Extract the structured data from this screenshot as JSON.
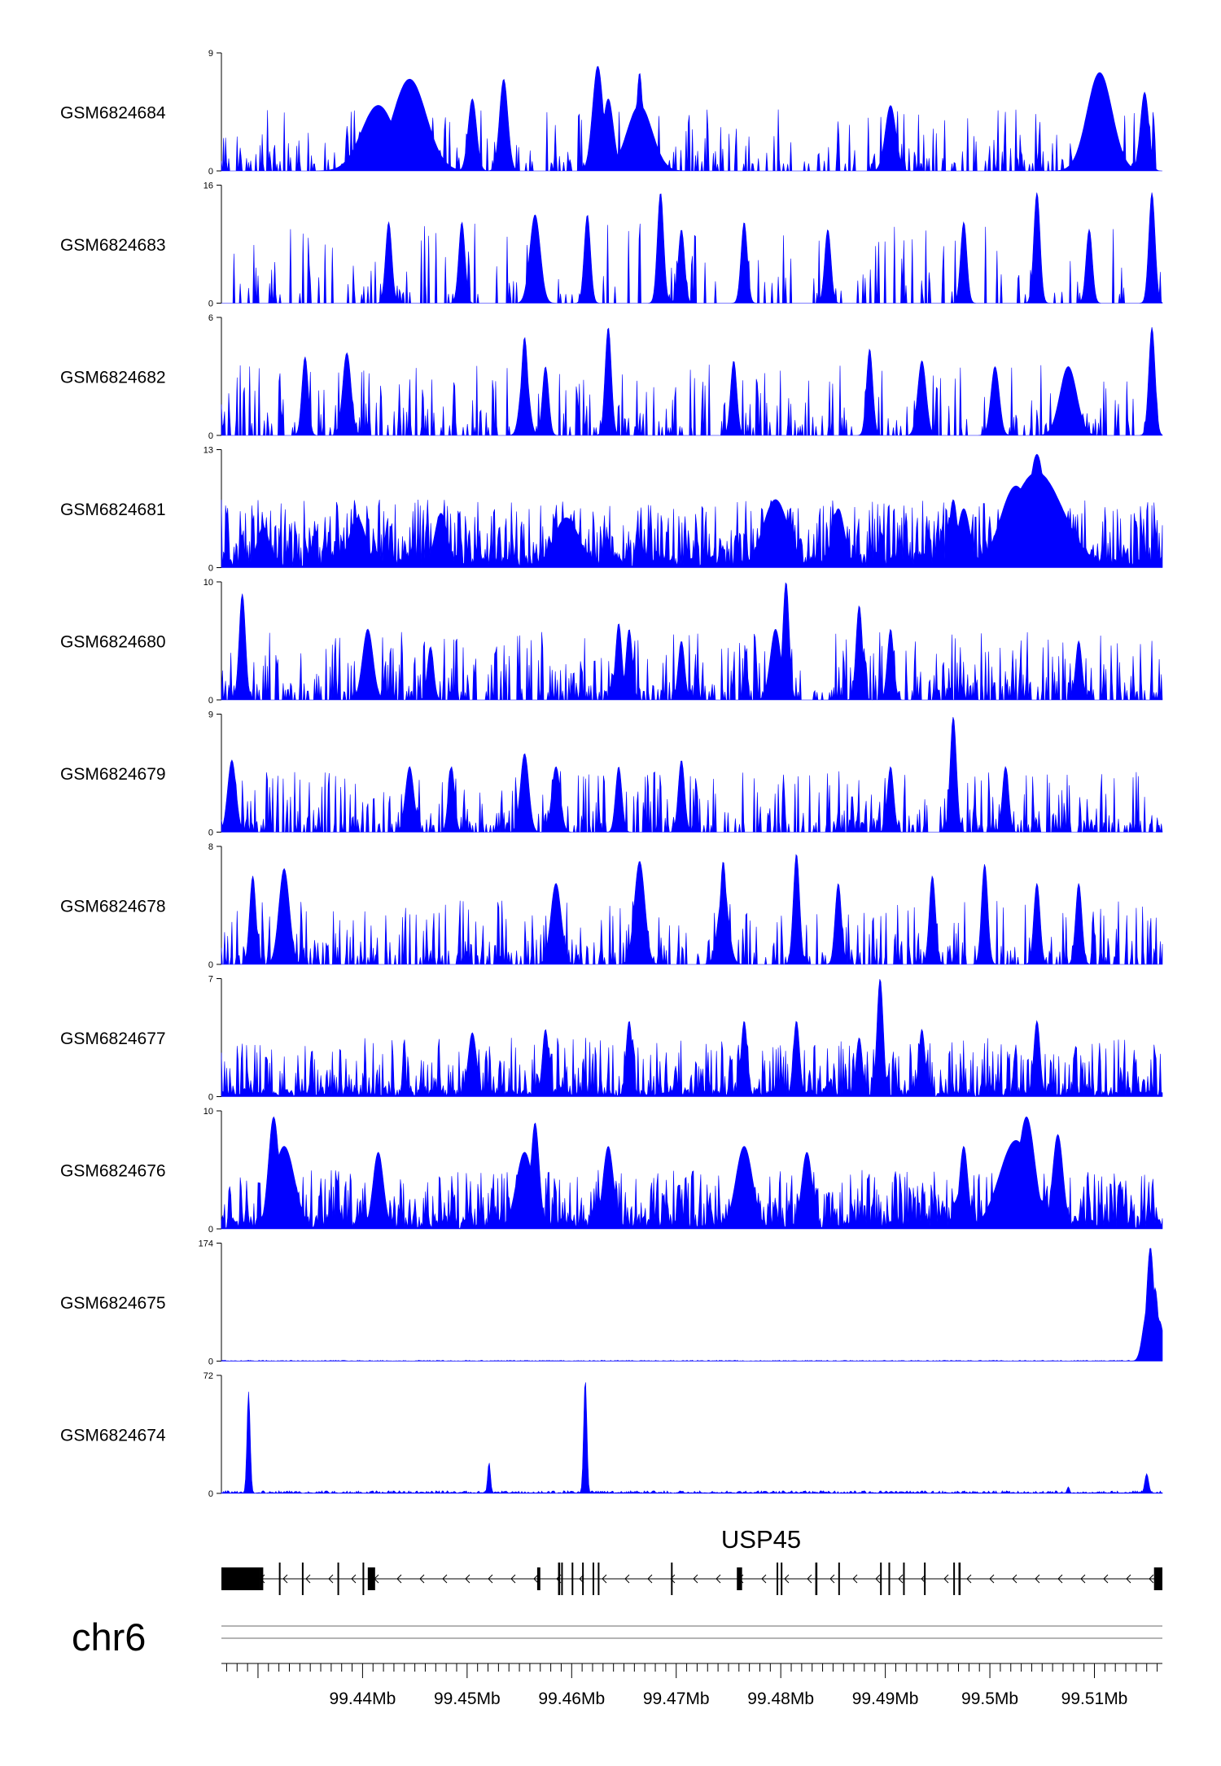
{
  "chart_data": {
    "type": "area",
    "chromosome": "chr6",
    "genome_range_mb": [
      99.4265,
      99.5165
    ],
    "x_ticks_mb": [
      99.44,
      99.45,
      99.46,
      99.47,
      99.48,
      99.49,
      99.5,
      99.51
    ],
    "x_tick_labels": [
      "99.44Mb",
      "99.45Mb",
      "99.46Mb",
      "99.47Mb",
      "99.48Mb",
      "99.49Mb",
      "99.5Mb",
      "99.51Mb"
    ],
    "series_color": "#0000ff",
    "tracks": [
      {
        "name": "GSM6824684",
        "ylim": [
          0,
          9
        ],
        "ymax_label": "9",
        "ymin_label": "0",
        "style": "sparse",
        "baseline": 1.3,
        "density": 0.33,
        "seed": 11,
        "peaks": [
          [
            99.4415,
            5.0,
            0.0016
          ],
          [
            99.4445,
            7.0,
            0.0016
          ],
          [
            99.4445,
            6.5,
            0.0006
          ],
          [
            99.4625,
            8.0,
            0.0005
          ],
          [
            99.4665,
            7.5,
            0.0003
          ],
          [
            99.4665,
            5.0,
            0.0012
          ],
          [
            99.4505,
            5.5,
            0.0004
          ],
          [
            99.4535,
            7.0,
            0.0004
          ],
          [
            99.4635,
            5.5,
            0.0005
          ],
          [
            99.4905,
            5.0,
            0.0005
          ],
          [
            99.5105,
            7.5,
            0.0012
          ],
          [
            99.5148,
            6.0,
            0.0004
          ]
        ]
      },
      {
        "name": "GSM6824683",
        "ylim": [
          0,
          16
        ],
        "ymax_label": "16",
        "ymin_label": "0",
        "style": "sparse",
        "baseline": 3.0,
        "density": 0.14,
        "seed": 23,
        "peaks": [
          [
            99.4685,
            15.0,
            0.0003
          ],
          [
            99.5155,
            15.0,
            0.0003
          ],
          [
            99.5045,
            15.0,
            0.0003
          ],
          [
            99.4565,
            12.0,
            0.0005
          ],
          [
            99.4615,
            12.0,
            0.0003
          ],
          [
            99.4425,
            11.0,
            0.0003
          ],
          [
            99.4495,
            11.0,
            0.0003
          ],
          [
            99.4765,
            11.0,
            0.0003
          ],
          [
            99.4975,
            11.0,
            0.0003
          ],
          [
            99.4845,
            10.0,
            0.0003
          ],
          [
            99.4705,
            10.0,
            0.0003
          ],
          [
            99.5095,
            10.0,
            0.0003
          ]
        ]
      },
      {
        "name": "GSM6824682",
        "ylim": [
          0,
          6
        ],
        "ymax_label": "6",
        "ymin_label": "0",
        "style": "sparse",
        "baseline": 1.0,
        "density": 0.3,
        "seed": 37,
        "peaks": [
          [
            99.4635,
            5.5,
            0.0003
          ],
          [
            99.5155,
            5.5,
            0.0003
          ],
          [
            99.4385,
            4.2,
            0.0004
          ],
          [
            99.4555,
            3.8,
            0.0004
          ],
          [
            99.4755,
            3.8,
            0.0003
          ],
          [
            99.4885,
            4.4,
            0.0003
          ],
          [
            99.4935,
            3.8,
            0.0004
          ],
          [
            99.4345,
            4.0,
            0.0003
          ],
          [
            99.4575,
            3.5,
            0.0003
          ],
          [
            99.5075,
            3.5,
            0.0008
          ],
          [
            99.5005,
            3.5,
            0.0004
          ],
          [
            99.4555,
            5.0,
            0.0003
          ]
        ]
      },
      {
        "name": "GSM6824681",
        "ylim": [
          0,
          13
        ],
        "ymax_label": "13",
        "ymin_label": "0",
        "style": "dense",
        "baseline": 3.0,
        "density": 0.85,
        "seed": 41,
        "peaks": [
          [
            99.5045,
            10.5,
            0.0025
          ],
          [
            99.5045,
            12.5,
            0.0008
          ],
          [
            99.5025,
            9.0,
            0.0015
          ],
          [
            99.4975,
            6.5,
            0.0006
          ],
          [
            99.4965,
            7.5,
            0.0004
          ],
          [
            99.4795,
            7.5,
            0.0012
          ],
          [
            99.4855,
            6.5,
            0.0006
          ],
          [
            99.4475,
            6.0,
            0.0006
          ],
          [
            99.4395,
            5.5,
            0.0008
          ],
          [
            99.4305,
            4.5,
            0.0006
          ],
          [
            99.4595,
            5.5,
            0.0012
          ]
        ]
      },
      {
        "name": "GSM6824680",
        "ylim": [
          0,
          10
        ],
        "ymax_label": "10",
        "ymin_label": "0",
        "style": "sparse",
        "baseline": 1.6,
        "density": 0.45,
        "seed": 53,
        "peaks": [
          [
            99.4285,
            9.0,
            0.0003
          ],
          [
            99.4805,
            10.0,
            0.0003
          ],
          [
            99.4795,
            6.0,
            0.0005
          ],
          [
            99.4875,
            8.0,
            0.0003
          ],
          [
            99.4645,
            6.5,
            0.0003
          ],
          [
            99.4405,
            6.0,
            0.0005
          ],
          [
            99.4655,
            6.0,
            0.0003
          ],
          [
            99.4905,
            6.0,
            0.0003
          ],
          [
            99.4465,
            4.5,
            0.0003
          ],
          [
            99.5085,
            5.0,
            0.0003
          ],
          [
            99.4705,
            5.0,
            0.0003
          ]
        ]
      },
      {
        "name": "GSM6824679",
        "ylim": [
          0,
          9
        ],
        "ymax_label": "9",
        "ymin_label": "0",
        "style": "sparse",
        "baseline": 1.3,
        "density": 0.42,
        "seed": 67,
        "peaks": [
          [
            99.4965,
            8.8,
            0.0003
          ],
          [
            99.4555,
            6.0,
            0.0004
          ],
          [
            99.4705,
            5.5,
            0.0003
          ],
          [
            99.4445,
            5.0,
            0.0004
          ],
          [
            99.4485,
            5.0,
            0.0003
          ],
          [
            99.4275,
            5.5,
            0.0004
          ],
          [
            99.4905,
            5.0,
            0.0003
          ],
          [
            99.5015,
            5.0,
            0.0003
          ],
          [
            99.4645,
            5.0,
            0.0003
          ],
          [
            99.4585,
            5.0,
            0.0004
          ]
        ]
      },
      {
        "name": "GSM6824678",
        "ylim": [
          0,
          8
        ],
        "ymax_label": "8",
        "ymin_label": "0",
        "style": "sparse",
        "baseline": 1.2,
        "density": 0.4,
        "seed": 79,
        "peaks": [
          [
            99.4815,
            7.5,
            0.0003
          ],
          [
            99.4745,
            7.0,
            0.0003
          ],
          [
            99.4665,
            7.0,
            0.0005
          ],
          [
            99.4745,
            5.0,
            0.0005
          ],
          [
            99.4995,
            6.8,
            0.0003
          ],
          [
            99.4945,
            6.0,
            0.0003
          ],
          [
            99.4325,
            6.5,
            0.0005
          ],
          [
            99.4295,
            6.0,
            0.0003
          ],
          [
            99.4585,
            5.5,
            0.0005
          ],
          [
            99.5085,
            5.5,
            0.0003
          ],
          [
            99.5045,
            5.5,
            0.0003
          ],
          [
            99.4855,
            5.5,
            0.0003
          ]
        ]
      },
      {
        "name": "GSM6824677",
        "ylim": [
          0,
          7
        ],
        "ymax_label": "7",
        "ymin_label": "0",
        "style": "dense",
        "baseline": 1.4,
        "density": 0.55,
        "seed": 83,
        "peaks": [
          [
            99.4895,
            7.0,
            0.0003
          ],
          [
            99.4765,
            4.5,
            0.0003
          ],
          [
            99.4815,
            4.5,
            0.0003
          ],
          [
            99.4575,
            4.0,
            0.0003
          ],
          [
            99.5045,
            4.5,
            0.0003
          ],
          [
            99.4655,
            4.5,
            0.0003
          ],
          [
            99.4935,
            4.0,
            0.0003
          ],
          [
            99.4505,
            3.8,
            0.0004
          ],
          [
            99.4875,
            3.5,
            0.0003
          ]
        ]
      },
      {
        "name": "GSM6824676",
        "ylim": [
          0,
          10
        ],
        "ymax_label": "10",
        "ymin_label": "0",
        "style": "dense",
        "baseline": 2.0,
        "density": 0.8,
        "seed": 97,
        "peaks": [
          [
            99.4315,
            9.5,
            0.0005
          ],
          [
            99.4325,
            7.0,
            0.001
          ],
          [
            99.4565,
            9.0,
            0.0004
          ],
          [
            99.4555,
            6.5,
            0.0008
          ],
          [
            99.5035,
            9.5,
            0.0008
          ],
          [
            99.5025,
            7.5,
            0.0016
          ],
          [
            99.5065,
            8.0,
            0.0005
          ],
          [
            99.4635,
            7.0,
            0.0005
          ],
          [
            99.4765,
            7.0,
            0.0008
          ],
          [
            99.4975,
            7.0,
            0.0004
          ],
          [
            99.4415,
            6.5,
            0.0005
          ],
          [
            99.4825,
            6.5,
            0.0005
          ]
        ]
      },
      {
        "name": "GSM6824675",
        "ylim": [
          0,
          174
        ],
        "ymax_label": "174",
        "ymin_label": "0",
        "style": "flat",
        "baseline": 1.2,
        "density": 0.6,
        "seed": 101,
        "peaks": [
          [
            99.51535,
            168.0,
            0.00035
          ],
          [
            99.5158,
            108.0,
            0.0003
          ],
          [
            99.515,
            70.0,
            0.0004
          ],
          [
            99.5162,
            60.0,
            0.0004
          ]
        ]
      },
      {
        "name": "GSM6824674",
        "ylim": [
          0,
          72
        ],
        "ymax_label": "72",
        "ymin_label": "0",
        "style": "flat",
        "baseline": 1.6,
        "density": 0.6,
        "seed": 113,
        "peaks": [
          [
            99.4291,
            62.0,
            0.00015
          ],
          [
            99.4521,
            19.0,
            0.00013
          ],
          [
            99.4613,
            70.0,
            0.00015
          ],
          [
            99.515,
            12.0,
            0.00018
          ],
          [
            99.5075,
            4.0,
            0.00012
          ]
        ]
      }
    ],
    "gene": {
      "name": "USP45",
      "strand": "-",
      "start_mb": 99.4265,
      "end_mb": 99.5165,
      "exons_mb": [
        [
          99.4265,
          99.4302
        ],
        [
          99.4302,
          99.4305
        ],
        [
          99.432,
          99.4321
        ],
        [
          99.4342,
          99.4343
        ],
        [
          99.4376,
          99.4377
        ],
        [
          99.44,
          99.4401
        ],
        [
          99.4405,
          99.4412
        ],
        [
          99.4567,
          99.457
        ],
        [
          99.4587,
          99.4589
        ],
        [
          99.459,
          99.4591
        ],
        [
          99.46,
          99.4601
        ],
        [
          99.461,
          99.4611
        ],
        [
          99.462,
          99.4621
        ],
        [
          99.4625,
          99.4626
        ],
        [
          99.4695,
          99.4696
        ],
        [
          99.4758,
          99.4763
        ],
        [
          99.4796,
          99.4797
        ],
        [
          99.48,
          99.4801
        ],
        [
          99.4833,
          99.4835
        ],
        [
          99.4855,
          99.4856
        ],
        [
          99.4895,
          99.4896
        ],
        [
          99.4903,
          99.4904
        ],
        [
          99.4917,
          99.4918
        ],
        [
          99.4937,
          99.4938
        ],
        [
          99.4965,
          99.4966
        ],
        [
          99.497,
          99.4972
        ],
        [
          99.5157,
          99.5165
        ]
      ]
    }
  }
}
